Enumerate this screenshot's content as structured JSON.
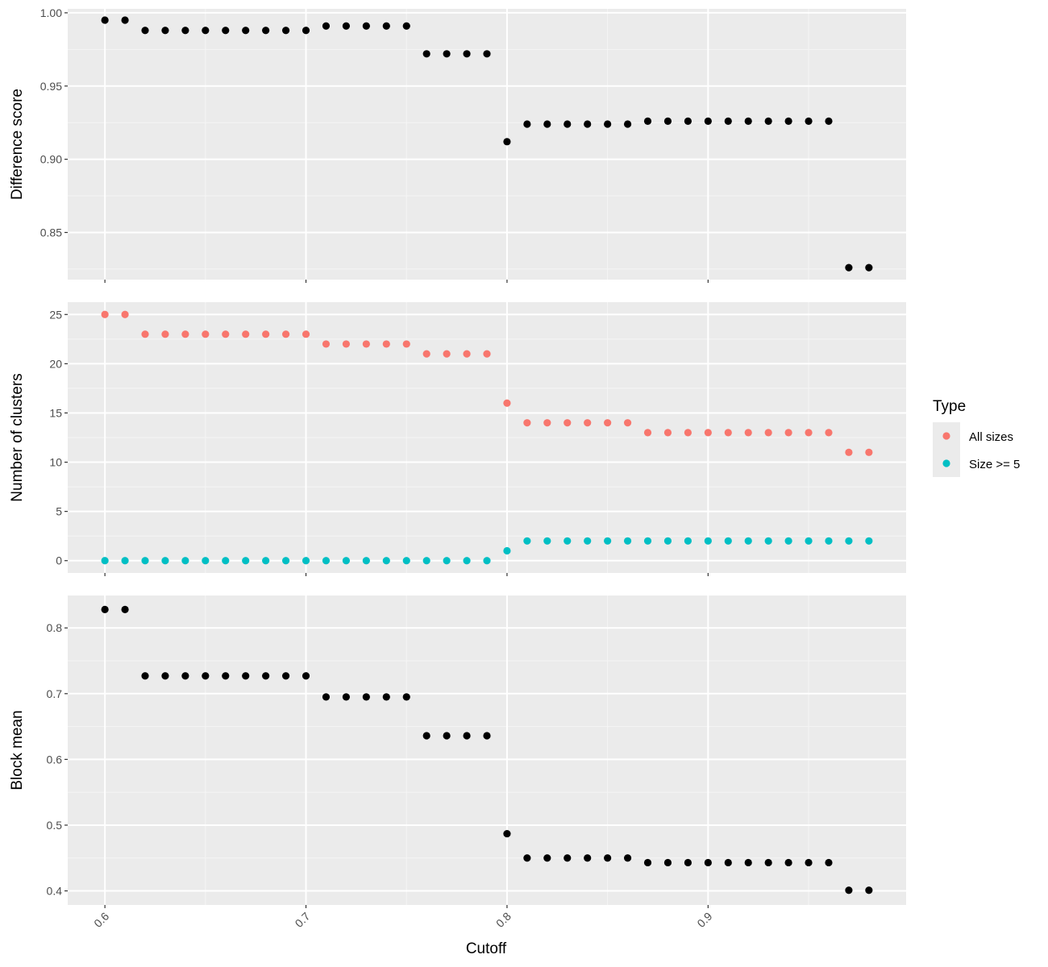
{
  "colors": {
    "panel_bg": "#EBEBEB",
    "grid_major": "#FFFFFF",
    "grid_minor": "#F5F5F5",
    "tick": "#333333",
    "point_default": "#000000",
    "all_sizes": "#F8766D",
    "size_ge_5": "#00BFC4"
  },
  "legend": {
    "title": "Type",
    "items": [
      {
        "label": "All sizes",
        "color": "#F8766D"
      },
      {
        "label": "Size >= 5",
        "color": "#00BFC4"
      }
    ]
  },
  "chart_data": {
    "type": "scatter",
    "layout": "three vertically stacked facets sharing the x axis",
    "xlabel": "Cutoff",
    "x_tick_labels": [
      "0.6",
      "0.7",
      "0.8",
      "0.9"
    ],
    "x_tick_values": [
      0.6,
      0.7,
      0.8,
      0.9
    ],
    "x_tick_rotation": "-45deg",
    "xlim": [
      0.5815,
      0.9985
    ],
    "x": [
      0.6,
      0.61,
      0.62,
      0.63,
      0.64,
      0.65,
      0.66,
      0.67,
      0.68,
      0.69,
      0.7,
      0.71,
      0.72,
      0.73,
      0.74,
      0.75,
      0.76,
      0.77,
      0.78,
      0.79,
      0.8,
      0.81,
      0.82,
      0.83,
      0.84,
      0.85,
      0.86,
      0.87,
      0.88,
      0.89,
      0.9,
      0.91,
      0.92,
      0.93,
      0.94,
      0.95,
      0.96,
      0.97,
      0.98
    ],
    "grid": true,
    "panels": [
      {
        "ylabel": "Difference score",
        "ylim": [
          0.8178,
          1.0027
        ],
        "y_tick_labels": [
          "0.85",
          "0.90",
          "0.95",
          "1.00"
        ],
        "y_tick_values": [
          0.85,
          0.9,
          0.95,
          1.0
        ],
        "series": [
          {
            "values": [
              0.995,
              0.995,
              0.988,
              0.988,
              0.988,
              0.988,
              0.988,
              0.988,
              0.988,
              0.988,
              0.988,
              0.991,
              0.991,
              0.991,
              0.991,
              0.991,
              0.972,
              0.972,
              0.972,
              0.972,
              0.912,
              0.924,
              0.924,
              0.924,
              0.924,
              0.924,
              0.924,
              0.926,
              0.926,
              0.926,
              0.926,
              0.926,
              0.926,
              0.926,
              0.926,
              0.926,
              0.926,
              0.826,
              0.826
            ],
            "color": "#000000"
          }
        ]
      },
      {
        "ylabel": "Number of clusters",
        "ylim": [
          -1.25,
          26.25
        ],
        "y_tick_labels": [
          "0",
          "5",
          "10",
          "15",
          "20",
          "25"
        ],
        "y_tick_values": [
          0,
          5,
          10,
          15,
          20,
          25
        ],
        "series": [
          {
            "name": "All sizes",
            "values": [
              25,
              25,
              23,
              23,
              23,
              23,
              23,
              23,
              23,
              23,
              23,
              22,
              22,
              22,
              22,
              22,
              21,
              21,
              21,
              21,
              16,
              14,
              14,
              14,
              14,
              14,
              14,
              13,
              13,
              13,
              13,
              13,
              13,
              13,
              13,
              13,
              13,
              11,
              11
            ],
            "color": "#F8766D"
          },
          {
            "name": "Size >= 5",
            "values": [
              0,
              0,
              0,
              0,
              0,
              0,
              0,
              0,
              0,
              0,
              0,
              0,
              0,
              0,
              0,
              0,
              0,
              0,
              0,
              0,
              1,
              2,
              2,
              2,
              2,
              2,
              2,
              2,
              2,
              2,
              2,
              2,
              2,
              2,
              2,
              2,
              2,
              2,
              2
            ],
            "color": "#00BFC4"
          }
        ]
      },
      {
        "ylabel": "Block mean",
        "ylim": [
          0.3786,
          0.8493
        ],
        "y_tick_labels": [
          "0.4",
          "0.5",
          "0.6",
          "0.7",
          "0.8"
        ],
        "y_tick_values": [
          0.4,
          0.5,
          0.6,
          0.7,
          0.8
        ],
        "series": [
          {
            "values": [
              0.828,
              0.828,
              0.727,
              0.727,
              0.727,
              0.727,
              0.727,
              0.727,
              0.727,
              0.727,
              0.727,
              0.695,
              0.695,
              0.695,
              0.695,
              0.695,
              0.636,
              0.636,
              0.636,
              0.636,
              0.487,
              0.45,
              0.45,
              0.45,
              0.45,
              0.45,
              0.45,
              0.443,
              0.443,
              0.443,
              0.443,
              0.443,
              0.443,
              0.443,
              0.443,
              0.443,
              0.443,
              0.401,
              0.401
            ],
            "color": "#000000"
          }
        ]
      }
    ]
  }
}
